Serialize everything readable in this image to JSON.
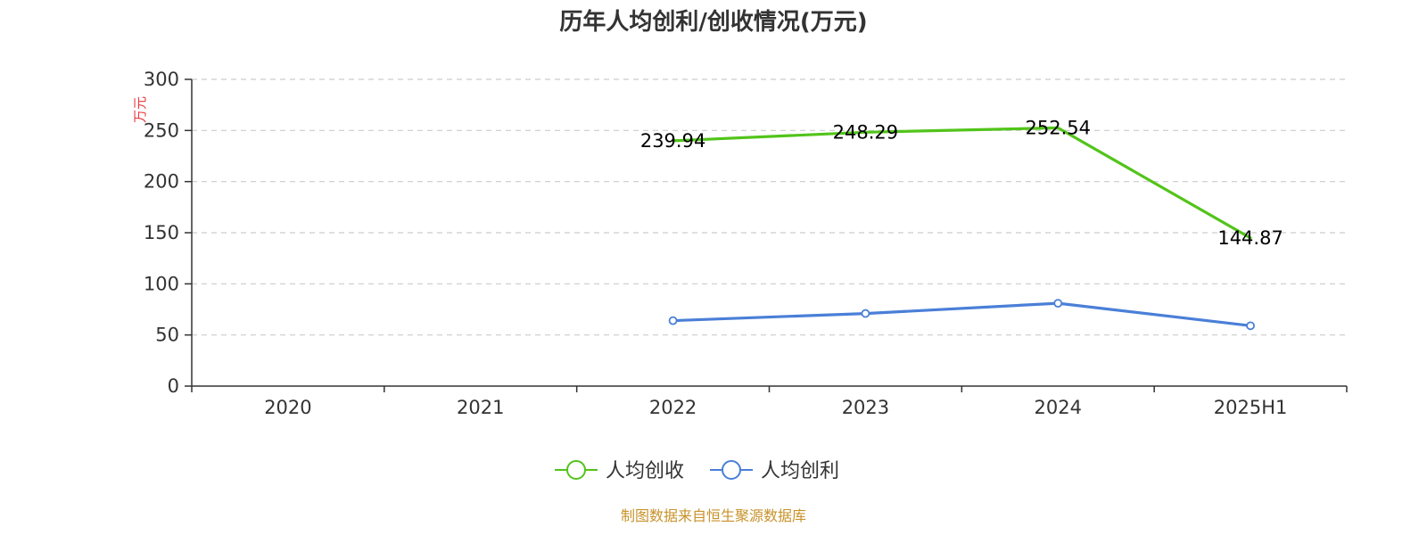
{
  "chart_data": {
    "type": "line",
    "title": "历年人均创利/创收情况(万元)",
    "ylabel": "万元",
    "ylim": [
      0,
      300
    ],
    "yticks": [
      0,
      50,
      100,
      150,
      200,
      250,
      300
    ],
    "categories": [
      "2020",
      "2021",
      "2022",
      "2023",
      "2024",
      "2025H1"
    ],
    "grid": true,
    "legend_position": "bottom",
    "series": [
      {
        "name": "人均创收",
        "color": "#52c41a",
        "values": [
          null,
          null,
          239.94,
          248.29,
          252.54,
          144.87
        ],
        "labels": [
          "",
          "",
          "239.94",
          "248.29",
          "252.54",
          "144.87"
        ],
        "show_markers": false
      },
      {
        "name": "人均创利",
        "color": "#4a7fd8",
        "values": [
          null,
          null,
          64,
          71,
          81,
          59
        ],
        "labels": [
          "",
          "",
          "",
          "",
          "",
          ""
        ],
        "show_markers": true
      }
    ]
  },
  "source": {
    "text": "制图数据来自恒生聚源数据库",
    "color": "#c8922a"
  },
  "unit_color": "#e8383d"
}
